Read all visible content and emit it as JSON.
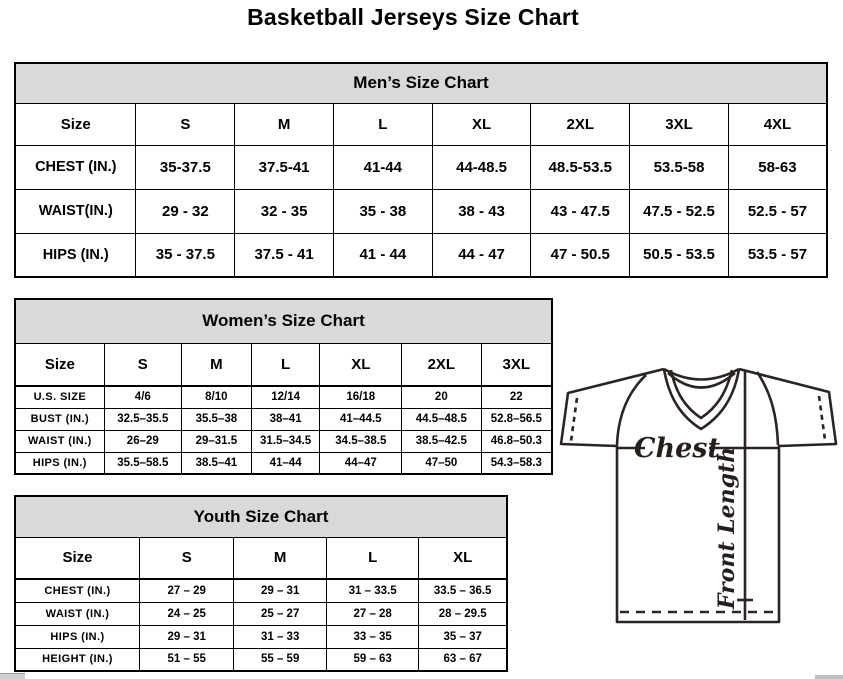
{
  "page": {
    "title": "Basketball Jerseys Size Chart"
  },
  "tables": {
    "men": {
      "title": "Men’s Size Chart",
      "columns": [
        "Size",
        "S",
        "M",
        "L",
        "XL",
        "2XL",
        "3XL",
        "4XL"
      ],
      "rows": [
        {
          "label": "CHEST (IN.)",
          "values": [
            "35-37.5",
            "37.5-41",
            "41-44",
            "44-48.5",
            "48.5-53.5",
            "53.5-58",
            "58-63"
          ]
        },
        {
          "label": "WAIST(IN.)",
          "values": [
            "29 - 32",
            "32 - 35",
            "35 - 38",
            "38 - 43",
            "43 - 47.5",
            "47.5 - 52.5",
            "52.5 - 57"
          ]
        },
        {
          "label": "HIPS (IN.)",
          "values": [
            "35 - 37.5",
            "37.5 - 41",
            "41 - 44",
            "44 - 47",
            "47 - 50.5",
            "50.5 - 53.5",
            "53.5 - 57"
          ]
        }
      ]
    },
    "women": {
      "title": "Women’s Size Chart",
      "columns": [
        "Size",
        "S",
        "M",
        "L",
        "XL",
        "2XL",
        "3XL"
      ],
      "rows": [
        {
          "label": "U.S. SIZE",
          "values": [
            "4/6",
            "8/10",
            "12/14",
            "16/18",
            "20",
            "22"
          ]
        },
        {
          "label": "BUST (IN.)",
          "values": [
            "32.5–35.5",
            "35.5–38",
            "38–41",
            "41–44.5",
            "44.5–48.5",
            "52.8–56.5"
          ]
        },
        {
          "label": "WAIST (IN.)",
          "values": [
            "26–29",
            "29–31.5",
            "31.5–34.5",
            "34.5–38.5",
            "38.5–42.5",
            "46.8–50.3"
          ]
        },
        {
          "label": "HIPS (IN.)",
          "values": [
            "35.5–58.5",
            "38.5–41",
            "41–44",
            "44–47",
            "47–50",
            "54.3–58.3"
          ]
        }
      ]
    },
    "youth": {
      "title": "Youth Size Chart",
      "columns": [
        "Size",
        "S",
        "M",
        "L",
        "XL"
      ],
      "rows": [
        {
          "label": "CHEST (IN.)",
          "values": [
            "27 – 29",
            "29 – 31",
            "31 – 33.5",
            "33.5 – 36.5"
          ]
        },
        {
          "label": "WAIST (IN.)",
          "values": [
            "24 – 25",
            "25 – 27",
            "27 – 28",
            "28 – 29.5"
          ]
        },
        {
          "label": "HIPS (IN.)",
          "values": [
            "29 – 31",
            "31 – 33",
            "33 – 35",
            "35 – 37"
          ]
        },
        {
          "label": "HEIGHT (IN.)",
          "values": [
            "51 – 55",
            "55 – 59",
            "59 – 63",
            "63 – 67"
          ]
        }
      ]
    }
  },
  "diagram": {
    "chest_label": "Chest",
    "front_length_label": "Front Length"
  },
  "colors": {
    "header_bg": "#d9d9d9",
    "table_border": "#000000",
    "jersey_line": "#2a2422"
  }
}
